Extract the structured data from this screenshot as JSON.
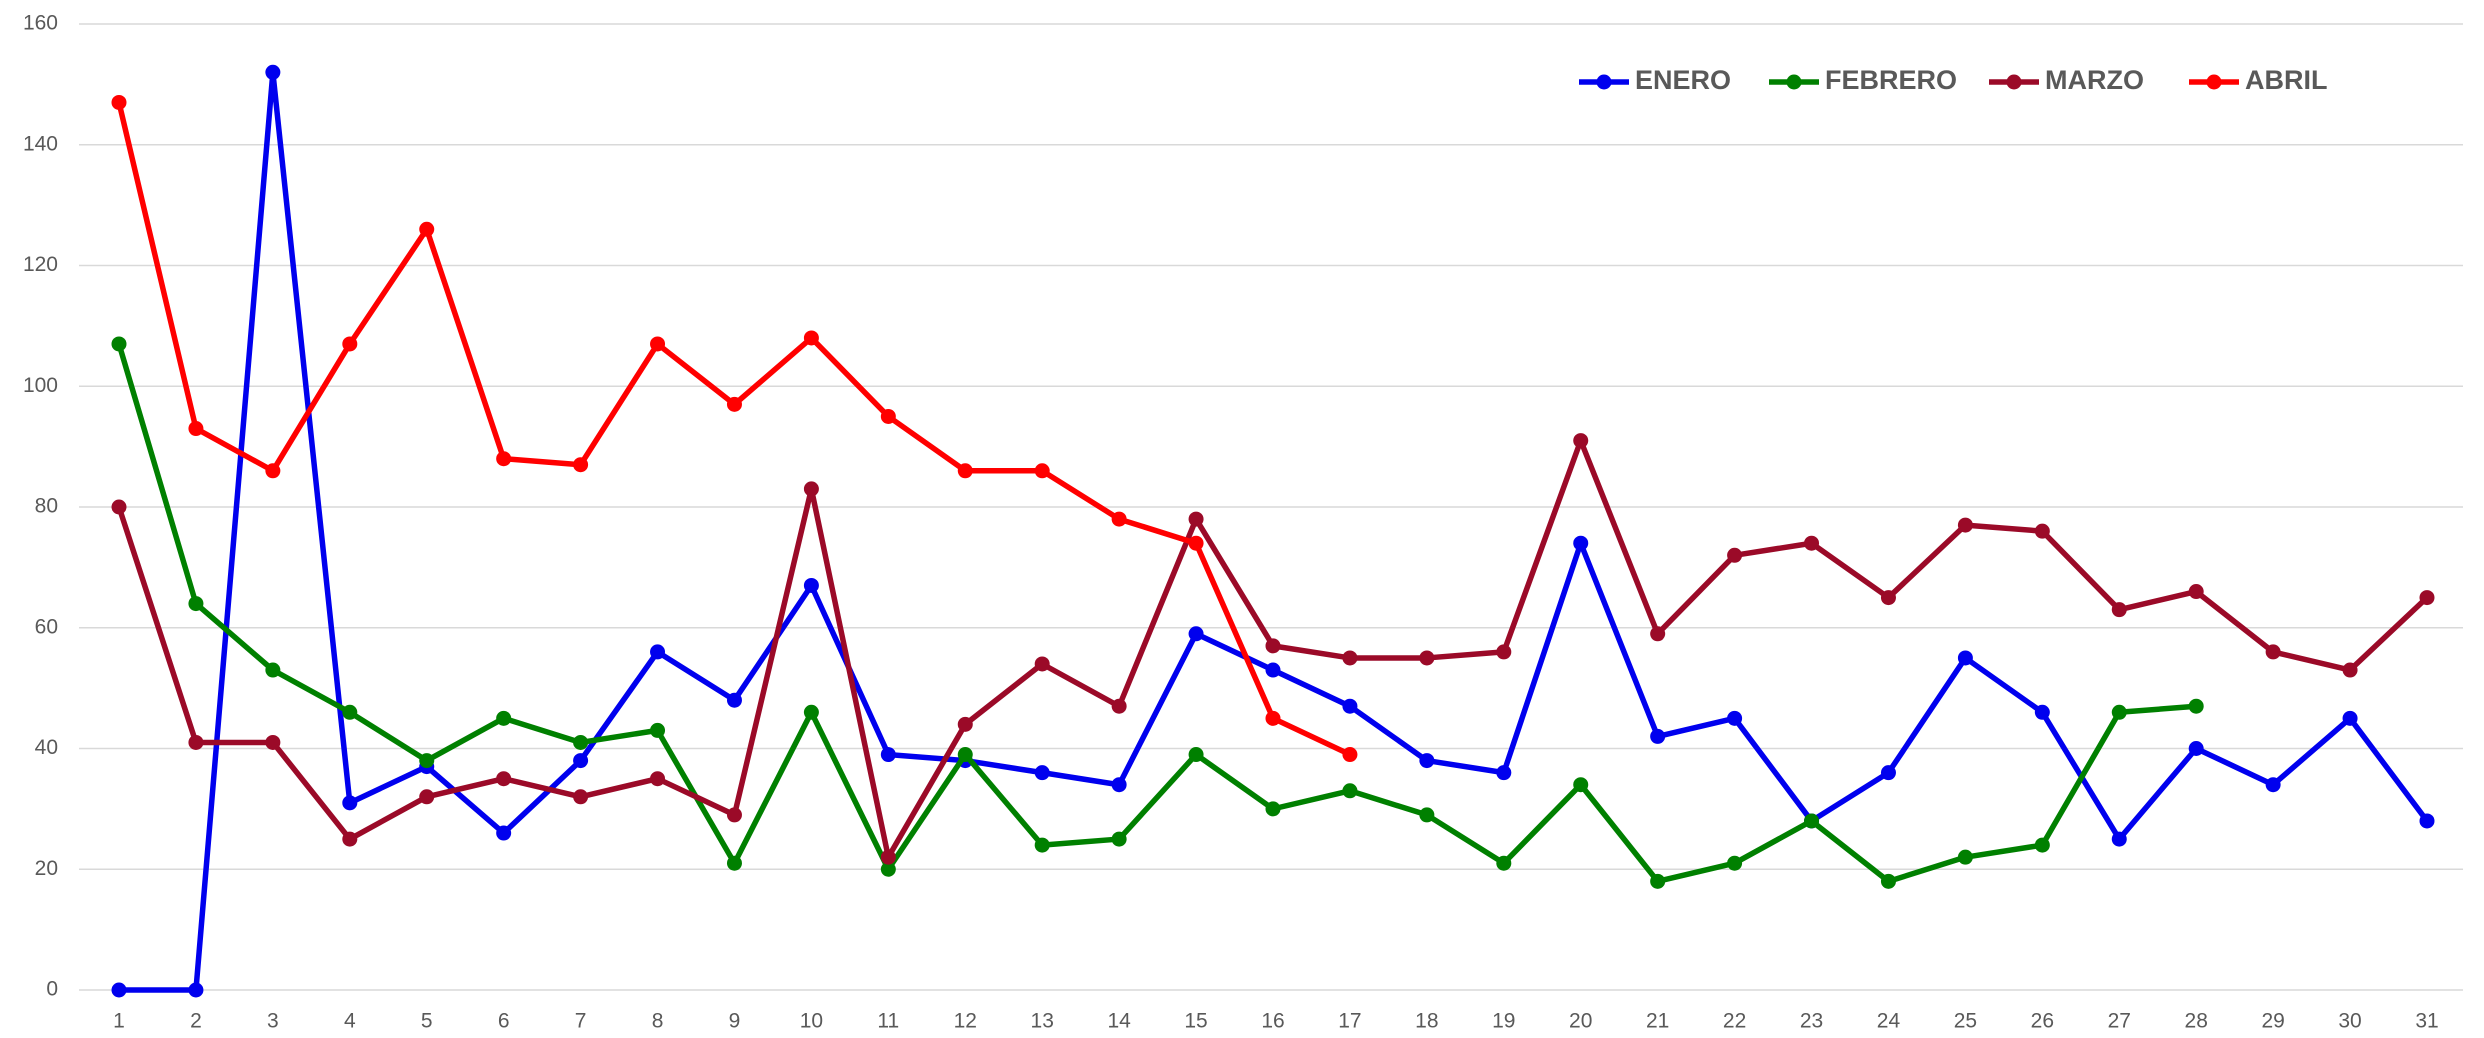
{
  "chart_data": {
    "type": "line",
    "x": [
      1,
      2,
      3,
      4,
      5,
      6,
      7,
      8,
      9,
      10,
      11,
      12,
      13,
      14,
      15,
      16,
      17,
      18,
      19,
      20,
      21,
      22,
      23,
      24,
      25,
      26,
      27,
      28,
      29,
      30,
      31
    ],
    "series": [
      {
        "name": "ENERO",
        "color": "#0000ee",
        "values": [
          0,
          0,
          152,
          31,
          37,
          26,
          38,
          56,
          48,
          67,
          39,
          38,
          36,
          34,
          59,
          53,
          47,
          38,
          36,
          74,
          42,
          45,
          28,
          36,
          55,
          46,
          25,
          40,
          34,
          45,
          28
        ]
      },
      {
        "name": "FEBRERO",
        "color": "#008000",
        "values": [
          107,
          64,
          53,
          46,
          38,
          45,
          41,
          43,
          21,
          46,
          20,
          39,
          24,
          25,
          39,
          30,
          33,
          29,
          21,
          34,
          18,
          21,
          28,
          18,
          22,
          24,
          46,
          47,
          null,
          null,
          null
        ]
      },
      {
        "name": "MARZO",
        "color": "#9b0a28",
        "values": [
          80,
          41,
          41,
          25,
          32,
          35,
          32,
          35,
          29,
          83,
          22,
          44,
          54,
          47,
          78,
          57,
          55,
          55,
          56,
          91,
          59,
          72,
          74,
          65,
          77,
          76,
          63,
          66,
          56,
          53,
          65
        ]
      },
      {
        "name": "ABRIL",
        "color": "#ff0000",
        "values": [
          147,
          93,
          86,
          107,
          126,
          88,
          87,
          107,
          97,
          108,
          95,
          86,
          86,
          78,
          74,
          45,
          39,
          null,
          null,
          null,
          null,
          null,
          null,
          null,
          null,
          null,
          null,
          null,
          null,
          null,
          null
        ]
      }
    ],
    "ylim": [
      0,
      160
    ],
    "yticks": [
      0,
      20,
      40,
      60,
      80,
      100,
      120,
      140,
      160
    ],
    "grid": true,
    "legend": "top-right"
  }
}
